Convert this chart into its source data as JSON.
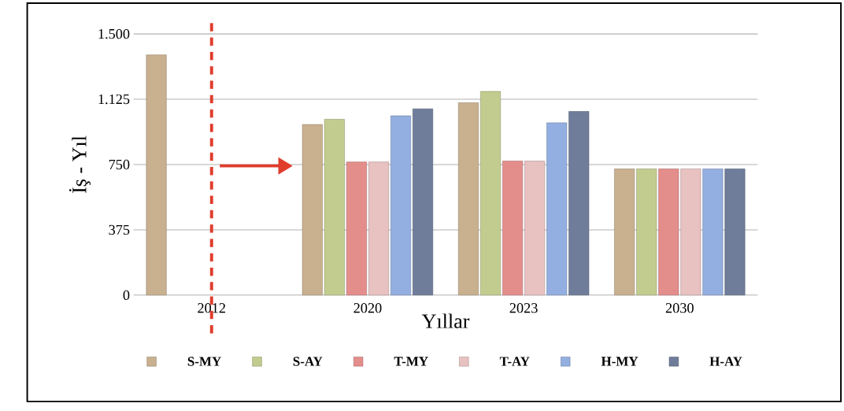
{
  "chart_data": {
    "type": "bar",
    "xlabel": "Yıllar",
    "ylabel": "İş - Yıl",
    "categories": [
      "2012",
      "2020",
      "2023",
      "2030"
    ],
    "series": [
      {
        "name": "S-MY",
        "color": "#c9b08f",
        "values": [
          1380,
          980,
          1105,
          725
        ]
      },
      {
        "name": "S-AY",
        "color": "#c2cc8e",
        "values": [
          null,
          1010,
          1170,
          725
        ]
      },
      {
        "name": "T-MY",
        "color": "#e48e8c",
        "values": [
          null,
          765,
          770,
          725
        ]
      },
      {
        "name": "T-AY",
        "color": "#e8c1c1",
        "values": [
          null,
          765,
          770,
          725
        ]
      },
      {
        "name": "H-MY",
        "color": "#93aee0",
        "values": [
          null,
          1030,
          990,
          725
        ]
      },
      {
        "name": "H-AY",
        "color": "#6f7d9a",
        "values": [
          null,
          1070,
          1055,
          725
        ]
      }
    ],
    "ylim": [
      0,
      1500
    ],
    "yticks": [
      0,
      375,
      750,
      {
        "value": 1125,
        "label": "1.125"
      },
      {
        "value": 1500,
        "label": "1.500"
      }
    ],
    "grid": "y",
    "legend": "bottom"
  }
}
